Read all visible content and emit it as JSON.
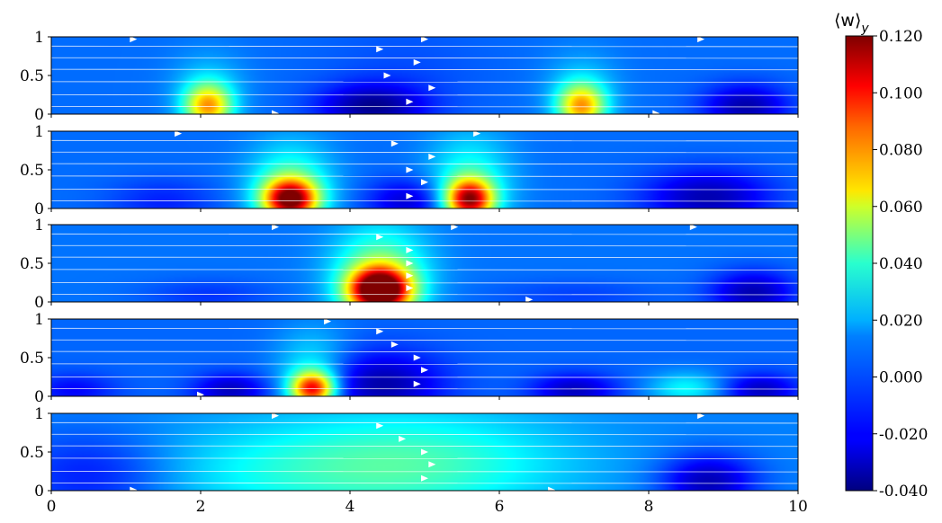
{
  "chart_data": {
    "type": "heatmap",
    "title": "",
    "xlabel": "",
    "ylabel": "",
    "xlim": [
      0,
      10
    ],
    "ylim": [
      0,
      1
    ],
    "x_ticks": [
      0,
      2,
      4,
      6,
      8,
      10
    ],
    "x_tick_labels": [
      "0",
      "2",
      "4",
      "6",
      "8",
      "10"
    ],
    "y_ticks": [
      0,
      0.5,
      1
    ],
    "y_tick_labels": [
      "0",
      "0.5",
      "1"
    ],
    "colormap": "jet",
    "colorbar": {
      "label": "⟨w⟩",
      "label_subscript": "y",
      "min": -0.04,
      "max": 0.12,
      "ticks": [
        -0.04,
        -0.02,
        0.0,
        0.02,
        0.04,
        0.06,
        0.08,
        0.1,
        0.12
      ],
      "tick_labels": [
        "-0.040",
        "-0.020",
        "0.000",
        "0.020",
        "0.040",
        "0.060",
        "0.080",
        "0.100",
        "0.120"
      ]
    },
    "streamlines": {
      "color": "#ffffff",
      "heights": [
        0.1,
        0.25,
        0.42,
        0.58,
        0.73,
        0.88
      ]
    },
    "panels": [
      {
        "name": "panel-1",
        "background": -0.003,
        "features": [
          {
            "x": 2.1,
            "y": 0.1,
            "value": 0.065,
            "sx": 0.22,
            "sy": 0.2
          },
          {
            "x": 2.1,
            "y": 0.3,
            "value": 0.012,
            "sx": 0.35,
            "sy": 0.35
          },
          {
            "x": 7.1,
            "y": 0.1,
            "value": 0.065,
            "sx": 0.22,
            "sy": 0.2
          },
          {
            "x": 7.1,
            "y": 0.3,
            "value": 0.012,
            "sx": 0.35,
            "sy": 0.35
          },
          {
            "x": 4.3,
            "y": 0.1,
            "value": -0.035,
            "sx": 0.5,
            "sy": 0.2
          },
          {
            "x": 9.3,
            "y": 0.1,
            "value": -0.033,
            "sx": 0.4,
            "sy": 0.2
          },
          {
            "x": 4.7,
            "y": 0.5,
            "value": -0.008,
            "sx": 0.8,
            "sy": 0.5
          }
        ],
        "arrows": [
          [
            1.1,
            0.97
          ],
          [
            4.4,
            0.84
          ],
          [
            4.9,
            0.67
          ],
          [
            4.5,
            0.5
          ],
          [
            5.1,
            0.34
          ],
          [
            4.8,
            0.16
          ],
          [
            3.0,
            0.01
          ],
          [
            5.0,
            0.97
          ],
          [
            8.7,
            0.97
          ],
          [
            8.1,
            0.01
          ]
        ]
      },
      {
        "name": "panel-2",
        "background": -0.003,
        "features": [
          {
            "x": 3.2,
            "y": 0.12,
            "value": 0.105,
            "sx": 0.25,
            "sy": 0.18
          },
          {
            "x": 3.2,
            "y": 0.3,
            "value": 0.03,
            "sx": 0.4,
            "sy": 0.4
          },
          {
            "x": 5.6,
            "y": 0.12,
            "value": 0.1,
            "sx": 0.22,
            "sy": 0.18
          },
          {
            "x": 5.6,
            "y": 0.35,
            "value": 0.025,
            "sx": 0.4,
            "sy": 0.45
          },
          {
            "x": 4.8,
            "y": 0.1,
            "value": -0.028,
            "sx": 0.4,
            "sy": 0.2
          },
          {
            "x": 8.8,
            "y": 0.15,
            "value": -0.032,
            "sx": 0.6,
            "sy": 0.25
          },
          {
            "x": 1.5,
            "y": 0.1,
            "value": -0.015,
            "sx": 0.5,
            "sy": 0.2
          }
        ],
        "arrows": [
          [
            1.7,
            0.97
          ],
          [
            4.6,
            0.84
          ],
          [
            5.1,
            0.67
          ],
          [
            4.8,
            0.5
          ],
          [
            5.0,
            0.34
          ],
          [
            4.8,
            0.16
          ],
          [
            5.7,
            0.97
          ]
        ]
      },
      {
        "name": "panel-3",
        "background": -0.002,
        "features": [
          {
            "x": 4.4,
            "y": 0.15,
            "value": 0.13,
            "sx": 0.28,
            "sy": 0.2
          },
          {
            "x": 4.4,
            "y": 0.35,
            "value": 0.04,
            "sx": 0.45,
            "sy": 0.45
          },
          {
            "x": 9.4,
            "y": 0.12,
            "value": -0.032,
            "sx": 0.4,
            "sy": 0.2
          },
          {
            "x": 2.1,
            "y": 0.08,
            "value": -0.012,
            "sx": 0.6,
            "sy": 0.15
          },
          {
            "x": 7.0,
            "y": 0.08,
            "value": -0.01,
            "sx": 0.8,
            "sy": 0.15
          }
        ],
        "arrows": [
          [
            3.0,
            0.97
          ],
          [
            4.4,
            0.84
          ],
          [
            4.8,
            0.67
          ],
          [
            4.8,
            0.5
          ],
          [
            4.8,
            0.34
          ],
          [
            4.8,
            0.18
          ],
          [
            5.4,
            0.97
          ],
          [
            8.6,
            0.97
          ],
          [
            6.4,
            0.03
          ]
        ]
      },
      {
        "name": "panel-4",
        "background": -0.004,
        "features": [
          {
            "x": 3.5,
            "y": 0.1,
            "value": 0.09,
            "sx": 0.2,
            "sy": 0.15
          },
          {
            "x": 3.5,
            "y": 0.3,
            "value": 0.02,
            "sx": 0.35,
            "sy": 0.4
          },
          {
            "x": 4.4,
            "y": 0.15,
            "value": -0.034,
            "sx": 0.6,
            "sy": 0.3
          },
          {
            "x": 2.4,
            "y": 0.08,
            "value": -0.03,
            "sx": 0.35,
            "sy": 0.15
          },
          {
            "x": 7.0,
            "y": 0.08,
            "value": -0.03,
            "sx": 0.4,
            "sy": 0.15
          },
          {
            "x": 9.5,
            "y": 0.08,
            "value": -0.03,
            "sx": 0.35,
            "sy": 0.15
          },
          {
            "x": 8.5,
            "y": 0.1,
            "value": 0.02,
            "sx": 0.35,
            "sy": 0.15
          },
          {
            "x": 0.3,
            "y": 0.08,
            "value": -0.02,
            "sx": 0.4,
            "sy": 0.15
          }
        ],
        "arrows": [
          [
            3.7,
            0.97
          ],
          [
            4.4,
            0.84
          ],
          [
            4.6,
            0.67
          ],
          [
            4.9,
            0.5
          ],
          [
            5.0,
            0.34
          ],
          [
            4.9,
            0.16
          ],
          [
            2.0,
            0.02
          ]
        ]
      },
      {
        "name": "panel-5",
        "background": 0.0,
        "features": [
          {
            "x": 4.8,
            "y": 0.35,
            "value": 0.03,
            "sx": 1.5,
            "sy": 0.5
          },
          {
            "x": 2.5,
            "y": 0.2,
            "value": 0.012,
            "sx": 1.5,
            "sy": 0.45
          },
          {
            "x": 8.8,
            "y": 0.12,
            "value": -0.032,
            "sx": 0.45,
            "sy": 0.25
          },
          {
            "x": 0.6,
            "y": 0.2,
            "value": -0.02,
            "sx": 0.8,
            "sy": 0.4
          }
        ],
        "arrows": [
          [
            3.0,
            0.97
          ],
          [
            4.4,
            0.84
          ],
          [
            4.7,
            0.67
          ],
          [
            5.0,
            0.5
          ],
          [
            5.1,
            0.34
          ],
          [
            5.0,
            0.16
          ],
          [
            8.7,
            0.97
          ],
          [
            1.1,
            0.01
          ],
          [
            6.7,
            0.01
          ]
        ]
      }
    ]
  }
}
